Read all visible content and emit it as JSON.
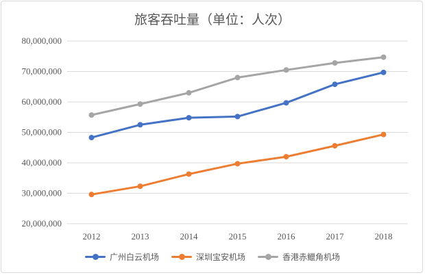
{
  "chart_data": {
    "type": "line",
    "title": "旅客吞吐量（单位：人次）",
    "xlabel": "",
    "ylabel": "",
    "categories": [
      "2012",
      "2013",
      "2014",
      "2015",
      "2016",
      "2017",
      "2018"
    ],
    "ylim": [
      20000000,
      80000000
    ],
    "yticks": [
      20000000,
      30000000,
      40000000,
      50000000,
      60000000,
      70000000,
      80000000
    ],
    "ytick_labels": [
      "20,000,000",
      "30,000,000",
      "40,000,000",
      "50,000,000",
      "60,000,000",
      "70,000,000",
      "80,000,000"
    ],
    "grid": true,
    "legend_position": "bottom",
    "series": [
      {
        "name": "广州白云机场",
        "color": "#4472c4",
        "values": [
          48300000,
          52500000,
          54800000,
          55200000,
          59700000,
          65800000,
          69700000
        ]
      },
      {
        "name": "深圳宝安机场",
        "color": "#ed7d31",
        "values": [
          29600000,
          32300000,
          36300000,
          39700000,
          42000000,
          45600000,
          49300000
        ]
      },
      {
        "name": "香港赤鱲角机场",
        "color": "#a5a5a5",
        "values": [
          55700000,
          59300000,
          63000000,
          68000000,
          70500000,
          72800000,
          74700000
        ]
      }
    ]
  }
}
